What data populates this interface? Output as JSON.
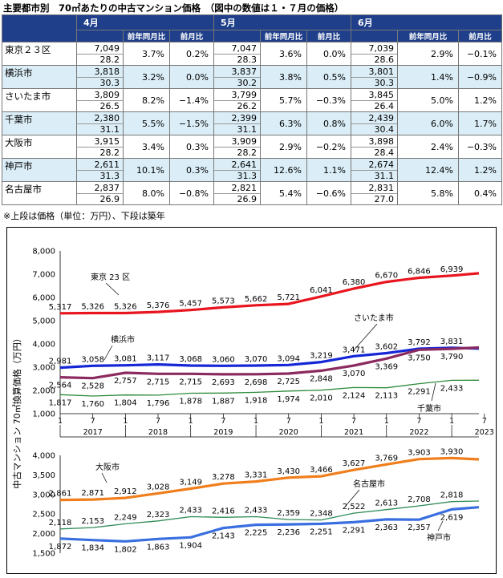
{
  "title": "主要都市別　70㎡あたりの中古マンション価格　（図中の数値は１・７月の価格）",
  "table": {
    "months": [
      "4月",
      "5月",
      "6月"
    ],
    "subheaders": [
      "前年同月比",
      "前月比"
    ],
    "rows": [
      {
        "city": "東京２３区",
        "cells": [
          [
            "7,049",
            "28.2",
            "3.7%",
            "0.2%"
          ],
          [
            "7,047",
            "28.3",
            "3.6%",
            "0.0%"
          ],
          [
            "7,039",
            "28.6",
            "2.9%",
            "−0.1%"
          ]
        ]
      },
      {
        "city": "横浜市",
        "cells": [
          [
            "3,818",
            "30.3",
            "3.2%",
            "0.0%"
          ],
          [
            "3,837",
            "30.2",
            "3.8%",
            "0.5%"
          ],
          [
            "3,801",
            "30.3",
            "1.4%",
            "−0.9%"
          ]
        ]
      },
      {
        "city": "さいたま市",
        "cells": [
          [
            "3,809",
            "26.5",
            "8.2%",
            "−1.4%"
          ],
          [
            "3,799",
            "26.2",
            "5.7%",
            "−0.3%"
          ],
          [
            "3,845",
            "26.4",
            "5.0%",
            "1.2%"
          ]
        ]
      },
      {
        "city": "千葉市",
        "cells": [
          [
            "2,380",
            "31.1",
            "5.5%",
            "−1.5%"
          ],
          [
            "2,399",
            "31.1",
            "6.3%",
            "0.8%"
          ],
          [
            "2,439",
            "30.4",
            "6.0%",
            "1.7%"
          ]
        ]
      },
      {
        "city": "大阪市",
        "cells": [
          [
            "3,915",
            "28.2",
            "3.4%",
            "0.3%"
          ],
          [
            "3,909",
            "28.2",
            "2.9%",
            "−0.2%"
          ],
          [
            "3,898",
            "28.4",
            "2.4%",
            "−0.3%"
          ]
        ]
      },
      {
        "city": "神戸市",
        "cells": [
          [
            "2,611",
            "31.3",
            "10.1%",
            "0.3%"
          ],
          [
            "2,641",
            "31.3",
            "12.6%",
            "1.1%"
          ],
          [
            "2,674",
            "31.1",
            "12.4%",
            "1.2%"
          ]
        ]
      },
      {
        "city": "名古屋市",
        "cells": [
          [
            "2,837",
            "26.9",
            "8.0%",
            "−0.8%"
          ],
          [
            "2,821",
            "26.9",
            "5.4%",
            "−0.6%"
          ],
          [
            "2,831",
            "27.0",
            "5.8%",
            "0.4%"
          ]
        ]
      }
    ]
  },
  "note": "※上段は価格（単位：万円）、下段は築年",
  "chart_data": {
    "type": "line",
    "ylabel": "中古マンション 70㎡換算価格（万円）",
    "x_month_ticks": [
      "1",
      "7",
      "1",
      "7",
      "1",
      "7",
      "1",
      "7",
      "1",
      "7",
      "1",
      "7",
      "1",
      "7"
    ],
    "x_years": [
      "2017",
      "2018",
      "2019",
      "2020",
      "2021",
      "2022",
      "2023"
    ],
    "x_range": [
      "2017-01",
      "2023-06"
    ],
    "panels": [
      {
        "ylim": [
          1000,
          8000
        ],
        "yticks": [
          "1,000",
          "2,000",
          "3,000",
          "4,000",
          "5,000",
          "6,000",
          "7,000",
          "8,000"
        ],
        "series": [
          {
            "name": "東京２３区",
            "color": "#e8141e",
            "width": 3.2,
            "x": [
              "2017-01",
              "2017-07",
              "2018-01",
              "2018-07",
              "2019-01",
              "2019-07",
              "2020-01",
              "2020-07",
              "2021-01",
              "2021-07",
              "2022-01",
              "2022-07",
              "2023-01",
              "2023-06"
            ],
            "values": [
              5317,
              5326,
              5326,
              5376,
              5457,
              5573,
              5662,
              5721,
              6041,
              6380,
              6670,
              6846,
              6939,
              7039
            ],
            "labels": [
              "5,317",
              "5,326",
              "5,326",
              "5,376",
              "5,457",
              "5,573",
              "5,662",
              "5,721",
              "6,041",
              "6,380",
              "6,670",
              "6,846",
              "6,939",
              ""
            ]
          },
          {
            "name": "横浜市",
            "color": "#1426d6",
            "width": 3.2,
            "x": [
              "2017-01",
              "2017-07",
              "2018-01",
              "2018-07",
              "2019-01",
              "2019-07",
              "2020-01",
              "2020-07",
              "2021-01",
              "2021-07",
              "2022-01",
              "2022-07",
              "2023-01",
              "2023-06"
            ],
            "values": [
              2981,
              3058,
              3081,
              3117,
              3068,
              3060,
              3070,
              3094,
              3219,
              3471,
              3602,
              3792,
              3831,
              3801
            ],
            "labels": [
              "2,981",
              "3,058",
              "3,081",
              "3,117",
              "3,068",
              "3,060",
              "3,070",
              "3,094",
              "3,219",
              "3,471",
              "3,602",
              "3,792",
              "3,831",
              ""
            ]
          },
          {
            "name": "さいたま市",
            "color": "#8b2a5f",
            "width": 3.2,
            "x": [
              "2017-01",
              "2017-07",
              "2018-01",
              "2018-07",
              "2019-01",
              "2019-07",
              "2020-01",
              "2020-07",
              "2021-01",
              "2021-07",
              "2022-01",
              "2022-07",
              "2023-01",
              "2023-06"
            ],
            "values": [
              2564,
              2528,
              2757,
              2715,
              2715,
              2693,
              2698,
              2725,
              2848,
              3070,
              3369,
              3750,
              3790,
              3845
            ],
            "labels": [
              "2,564",
              "2,528",
              "2,757",
              "2,715",
              "2,715",
              "2,693",
              "2,698",
              "2,725",
              "2,848",
              "3,070",
              "3,369",
              "3,750",
              "3,790",
              ""
            ]
          },
          {
            "name": "千葉市",
            "color": "#2e8b3a",
            "width": 1.3,
            "x": [
              "2017-01",
              "2017-07",
              "2018-01",
              "2018-07",
              "2019-01",
              "2019-07",
              "2020-01",
              "2020-07",
              "2021-01",
              "2021-07",
              "2022-01",
              "2022-07",
              "2023-01",
              "2023-06"
            ],
            "values": [
              1817,
              1760,
              1804,
              1796,
              1878,
              1887,
              1918,
              1974,
              2010,
              2124,
              2113,
              2291,
              2433,
              2439
            ],
            "labels": [
              "1,817",
              "1,760",
              "1,804",
              "1,796",
              "1,878",
              "1,887",
              "1,918",
              "1,974",
              "2,010",
              "2,124",
              "2,113",
              "2,291",
              "2,433",
              ""
            ]
          }
        ],
        "name_labels": [
          "東京 23 区",
          "横浜市",
          "さいたま市",
          "千葉市"
        ]
      },
      {
        "ylim": [
          1500,
          4000
        ],
        "yticks": [
          "1,500",
          "2,000",
          "2,500",
          "3,000",
          "3,500",
          "4,000"
        ],
        "series": [
          {
            "name": "大阪市",
            "color": "#f07e1c",
            "width": 3.2,
            "x": [
              "2017-01",
              "2017-07",
              "2018-01",
              "2018-07",
              "2019-01",
              "2019-07",
              "2020-01",
              "2020-07",
              "2021-01",
              "2021-07",
              "2022-01",
              "2022-07",
              "2023-01",
              "2023-06"
            ],
            "values": [
              2861,
              2871,
              2912,
              3028,
              3149,
              3278,
              3331,
              3430,
              3466,
              3627,
              3769,
              3903,
              3930,
              3898
            ],
            "labels": [
              "2,861",
              "2,871",
              "2,912",
              "3,028",
              "3,149",
              "3,278",
              "3,331",
              "3,430",
              "3,466",
              "3,627",
              "3,769",
              "3,903",
              "3,930",
              ""
            ]
          },
          {
            "name": "名古屋市",
            "color": "#2e8b57",
            "width": 1.3,
            "x": [
              "2017-01",
              "2017-07",
              "2018-01",
              "2018-07",
              "2019-01",
              "2019-07",
              "2020-01",
              "2020-07",
              "2021-01",
              "2021-07",
              "2022-01",
              "2022-07",
              "2023-01",
              "2023-06"
            ],
            "values": [
              2118,
              2153,
              2249,
              2323,
              2433,
              2416,
              2433,
              2359,
              2348,
              2522,
              2613,
              2708,
              2818,
              2831
            ],
            "labels": [
              "2,118",
              "2,153",
              "2,249",
              "2,323",
              "2,433",
              "2,416",
              "2,433",
              "2,359",
              "2,348",
              "2,522",
              "2,613",
              "2,708",
              "2,818",
              ""
            ]
          },
          {
            "name": "神戸市",
            "color": "#3a6fe0",
            "width": 3.2,
            "x": [
              "2017-01",
              "2017-07",
              "2018-01",
              "2018-07",
              "2019-01",
              "2019-07",
              "2020-01",
              "2020-07",
              "2021-01",
              "2021-07",
              "2022-01",
              "2022-07",
              "2023-01",
              "2023-06"
            ],
            "values": [
              1872,
              1834,
              1802,
              1863,
              1904,
              2143,
              2225,
              2236,
              2251,
              2291,
              2363,
              2357,
              2619,
              2674
            ],
            "labels": [
              "1,872",
              "1,834",
              "1,802",
              "1,863",
              "1,904",
              "2,143",
              "2,225",
              "2,236",
              "2,251",
              "2,291",
              "2,363",
              "2,357",
              "2,619",
              ""
            ]
          }
        ],
        "name_labels": [
          "大阪市",
          "名古屋市",
          "神戸市"
        ]
      }
    ]
  }
}
